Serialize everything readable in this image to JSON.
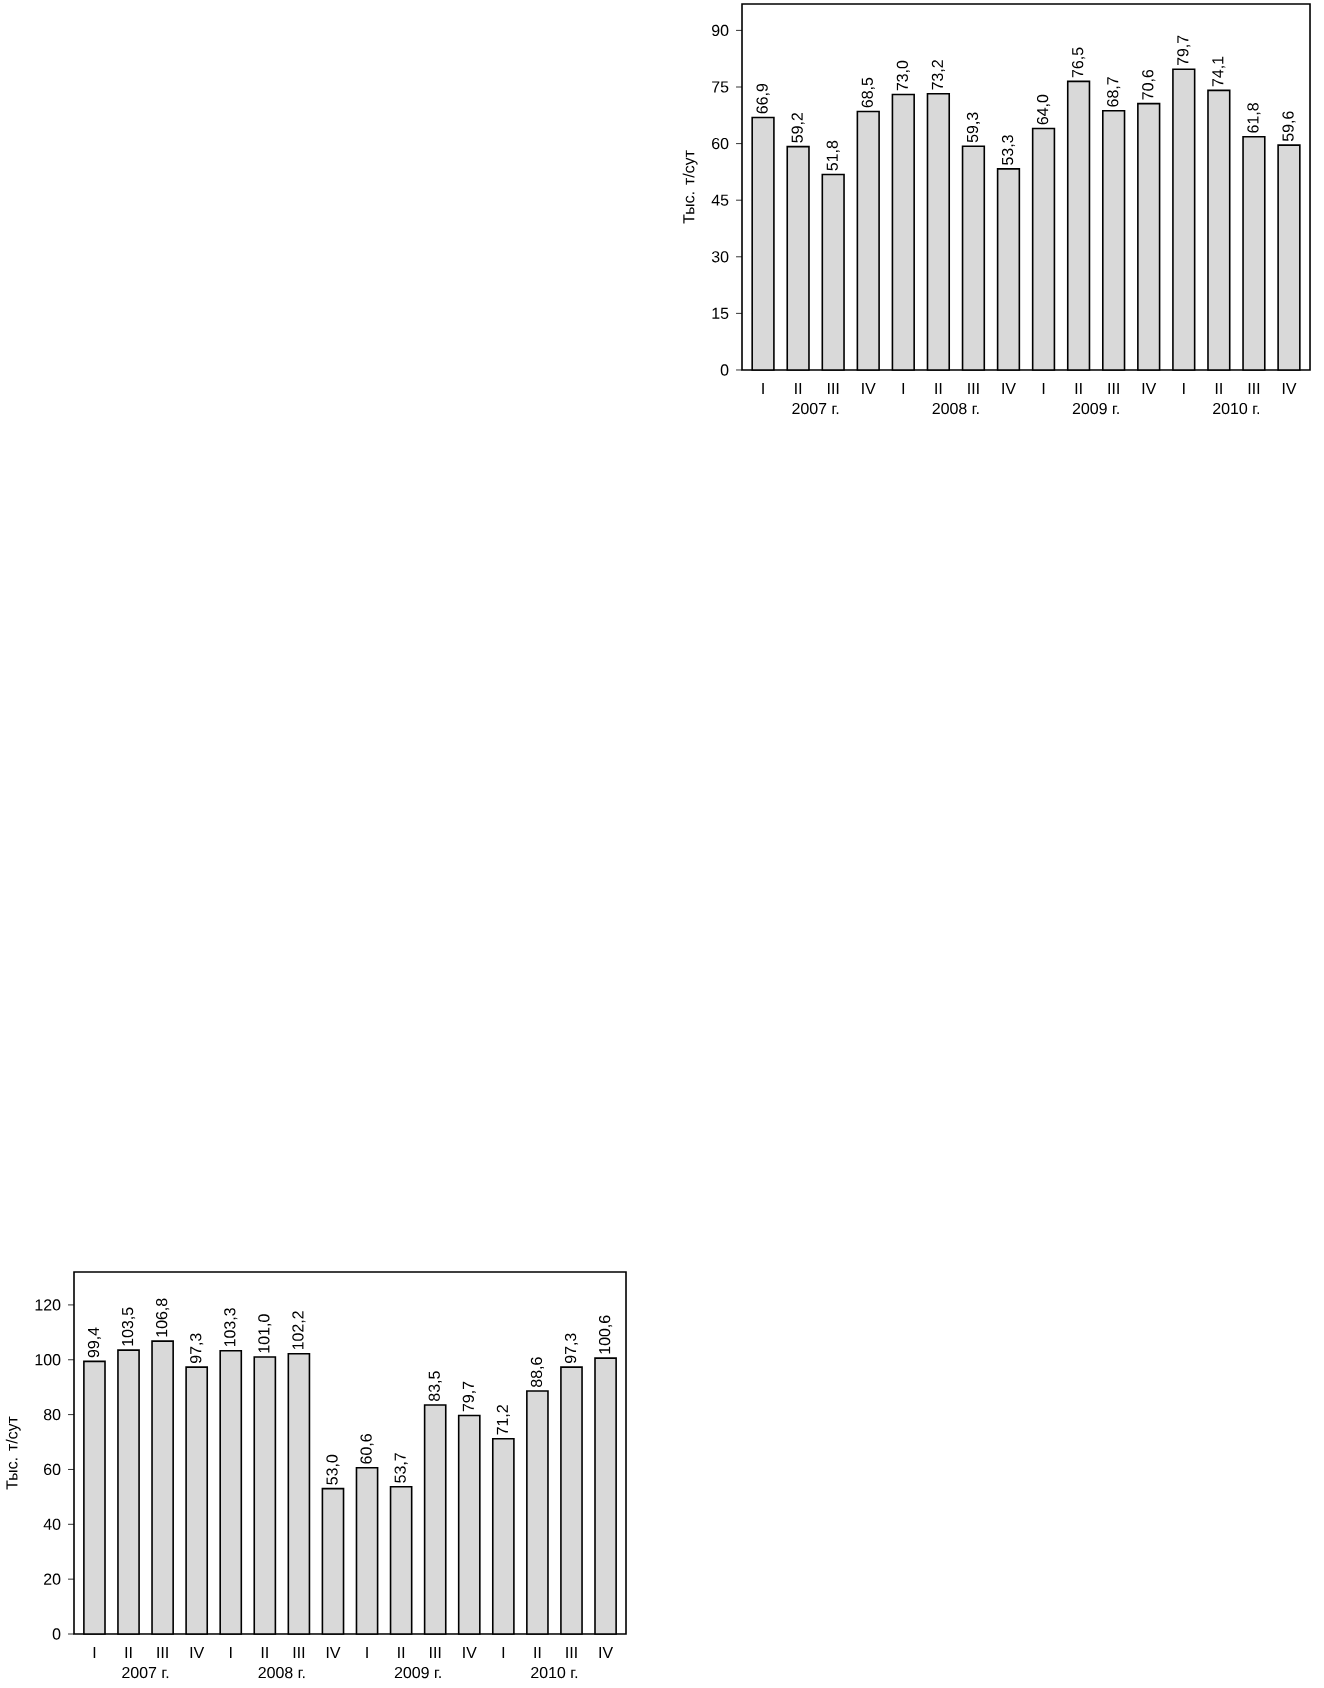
{
  "chart_data": [
    {
      "type": "bar",
      "ylabel": "Тыс. т/сут",
      "categories": [
        "I",
        "II",
        "III",
        "IV",
        "I",
        "II",
        "III",
        "IV",
        "I",
        "II",
        "III",
        "IV",
        "I",
        "II",
        "III",
        "IV"
      ],
      "values": [
        66.9,
        59.2,
        51.8,
        68.5,
        73.0,
        73.2,
        59.3,
        53.3,
        64.0,
        76.5,
        68.7,
        70.6,
        79.7,
        74.1,
        61.8,
        59.6
      ],
      "value_labels": [
        "66,9",
        "59,2",
        "51,8",
        "68,5",
        "73,0",
        "73,2",
        "59,3",
        "53,3",
        "64,0",
        "76,5",
        "68,7",
        "70,6",
        "79,7",
        "74,1",
        "61,8",
        "59,6"
      ],
      "color": "#d9d9d9",
      "ylim": [
        0,
        97
      ],
      "yticks": [
        0,
        15,
        30,
        45,
        60,
        75,
        90
      ],
      "annotations": [
        "2007 г.",
        "2008 г.",
        "2009 г.",
        "2010 г."
      ]
    },
    {
      "type": "bar",
      "ylabel": "Тыс. т/сут",
      "categories": [
        "I",
        "II",
        "III",
        "IV",
        "I",
        "II",
        "III",
        "IV",
        "I",
        "II",
        "III",
        "IV",
        "I",
        "II",
        "III",
        "IV"
      ],
      "values": [
        99.4,
        103.5,
        106.8,
        97.3,
        103.3,
        101.0,
        102.2,
        53.0,
        60.6,
        53.7,
        83.5,
        79.7,
        71.2,
        88.6,
        97.3,
        100.6
      ],
      "value_labels": [
        "99,4",
        "103,5",
        "106,8",
        "97,3",
        "103,3",
        "101,0",
        "102,2",
        "53,0",
        "60,6",
        "53,7",
        "83,5",
        "79,7",
        "71,2",
        "88,6",
        "97,3",
        "100,6"
      ],
      "color": "#d9d9d9",
      "ylim": [
        0,
        132
      ],
      "yticks": [
        0,
        20,
        40,
        60,
        80,
        100,
        120
      ],
      "annotations": [
        "2007 г.",
        "2008 г.",
        "2009 г.",
        "2010 г."
      ]
    }
  ]
}
